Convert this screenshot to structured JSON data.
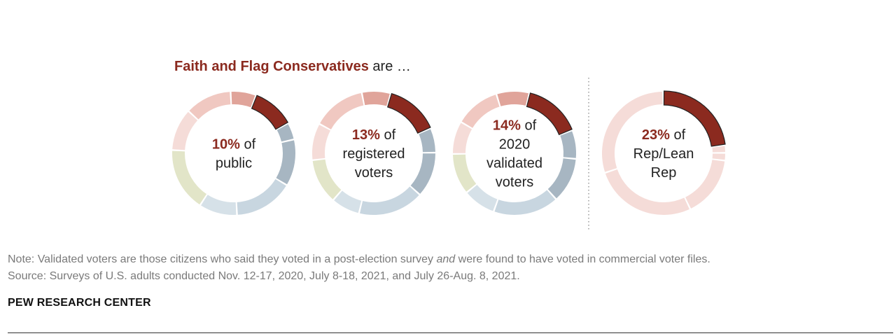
{
  "heading": {
    "highlight": "Faith and Flag Conservatives",
    "rest": " are …"
  },
  "colors": {
    "highlight": "#8b2a1f",
    "divider": "#999999"
  },
  "chart_data": [
    {
      "type": "pie",
      "style": "donut",
      "highlight_value": 10,
      "percent_label": "10%",
      "label_lines": [
        "of",
        "public"
      ],
      "slices": [
        {
          "value": 10,
          "color": "#8b2a1f",
          "highlighted": true
        },
        {
          "value": 4,
          "color": "#a7b6c2"
        },
        {
          "value": 11,
          "color": "#a7b6c2"
        },
        {
          "value": 14,
          "color": "#c8d6e0"
        },
        {
          "value": 9,
          "color": "#d6e1e8"
        },
        {
          "value": 15,
          "color": "#e2e5c8"
        },
        {
          "value": 10,
          "color": "#f5dcd8"
        },
        {
          "value": 11,
          "color": "#f0c8c1"
        },
        {
          "value": 6,
          "color": "#e0a49a"
        }
      ]
    },
    {
      "type": "pie",
      "style": "donut",
      "highlight_value": 13,
      "percent_label": "13%",
      "label_lines": [
        "of",
        "registered",
        "voters"
      ],
      "slices": [
        {
          "value": 13,
          "color": "#8b2a1f",
          "highlighted": true
        },
        {
          "value": 6,
          "color": "#a7b6c2"
        },
        {
          "value": 11,
          "color": "#a7b6c2"
        },
        {
          "value": 16,
          "color": "#c8d6e0"
        },
        {
          "value": 7,
          "color": "#d6e1e8"
        },
        {
          "value": 11,
          "color": "#e2e5c8"
        },
        {
          "value": 9,
          "color": "#f5dcd8"
        },
        {
          "value": 13,
          "color": "#f0c8c1"
        },
        {
          "value": 7,
          "color": "#e0a49a"
        }
      ]
    },
    {
      "type": "pie",
      "style": "donut",
      "highlight_value": 14,
      "percent_label": "14%",
      "label_lines": [
        "of",
        "2020",
        "validated",
        "voters"
      ],
      "slices": [
        {
          "value": 14,
          "color": "#8b2a1f",
          "highlighted": true
        },
        {
          "value": 7,
          "color": "#a7b6c2"
        },
        {
          "value": 11,
          "color": "#a7b6c2"
        },
        {
          "value": 16,
          "color": "#c8d6e0"
        },
        {
          "value": 8,
          "color": "#d6e1e8"
        },
        {
          "value": 10,
          "color": "#e2e5c8"
        },
        {
          "value": 8,
          "color": "#f5dcd8"
        },
        {
          "value": 11,
          "color": "#f0c8c1"
        },
        {
          "value": 8,
          "color": "#e0a49a"
        }
      ]
    },
    {
      "type": "pie",
      "style": "donut",
      "highlight_value": 23,
      "percent_label": "23%",
      "label_lines": [
        "of",
        "Rep/Lean",
        "Rep"
      ],
      "slices": [
        {
          "value": 23,
          "color": "#8b2a1f",
          "highlighted": true
        },
        {
          "value": 2,
          "color": "#f5dcd8"
        },
        {
          "value": 2,
          "color": "#f5dcd8"
        },
        {
          "value": 16,
          "color": "#f5dcd8"
        },
        {
          "value": 27,
          "color": "#f5dcd8"
        },
        {
          "value": 30,
          "color": "#f5dcd8"
        }
      ]
    }
  ],
  "note": {
    "prefix": "Note: Validated voters are those citizens who said they voted in a post-election survey ",
    "emph": "and",
    "suffix": " were found to have voted in commercial voter files.",
    "source": "Source: Surveys of U.S. adults conducted Nov. 12-17, 2020, July 8-18, 2021, and July 26-Aug. 8, 2021."
  },
  "brand": "PEW RESEARCH CENTER"
}
